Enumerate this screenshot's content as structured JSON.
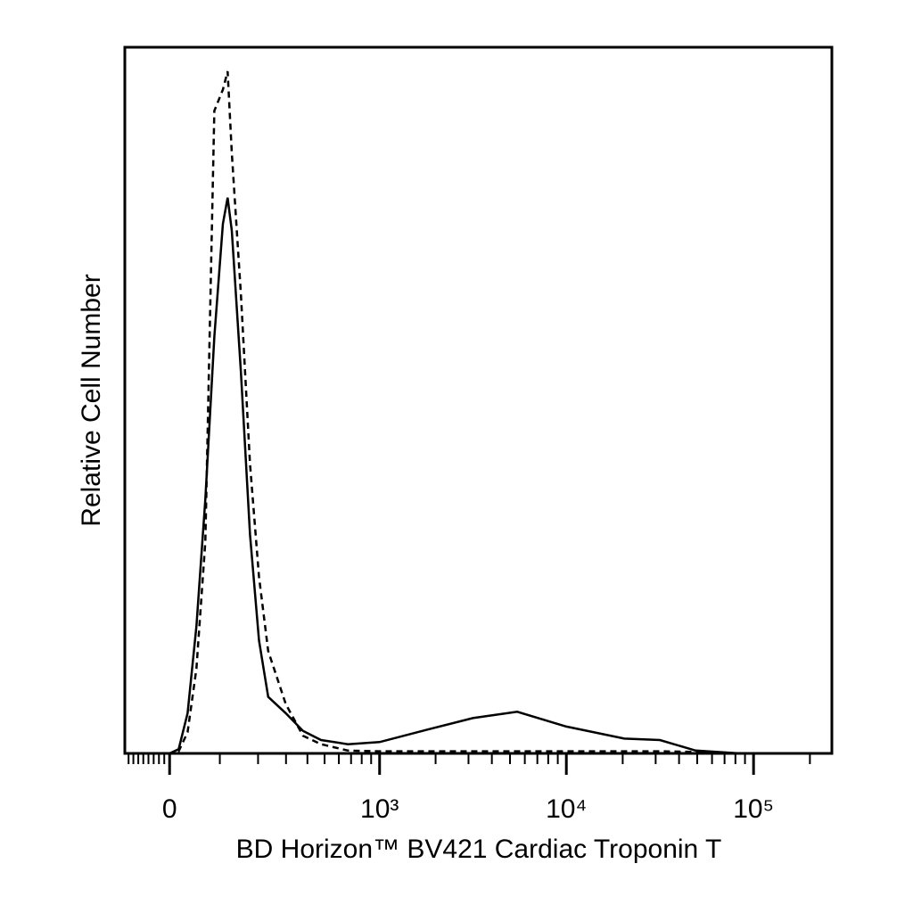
{
  "chart_data": {
    "type": "line",
    "xlabel": "BD Horizon™ BV421 Cardiac Troponin T",
    "ylabel": "Relative Cell Number",
    "xscale": "biexponential",
    "xlim": [
      -88,
      262000
    ],
    "ylim": [
      0,
      100
    ],
    "xticks": [
      {
        "value": 0,
        "label": "0"
      },
      {
        "value": 1000,
        "label": "10³"
      },
      {
        "value": 10000,
        "label": "10⁴"
      },
      {
        "value": 100000,
        "label": "10⁵"
      }
    ],
    "xminorticks": [
      -80,
      -70,
      -60,
      -50,
      -40,
      -30,
      -20,
      -10,
      100,
      200,
      300,
      400,
      500,
      600,
      700,
      800,
      900,
      2000,
      3000,
      4000,
      5000,
      6000,
      7000,
      8000,
      9000,
      20000,
      30000,
      40000,
      50000,
      60000,
      70000,
      80000,
      90000,
      200000
    ],
    "x": [
      -88,
      0,
      17,
      34,
      51,
      69,
      88,
      107,
      118,
      128,
      151,
      176,
      203,
      233,
      299,
      377,
      478,
      673,
      1000,
      1826,
      3162,
      5467,
      10000,
      20400,
      31600,
      49000,
      84800,
      262000
    ],
    "series": [
      {
        "color": "#000000",
        "dash": "solid",
        "values": [
          0,
          0,
          0.6,
          5.7,
          18,
          36,
          59,
          75,
          78.7,
          74,
          54,
          31,
          16,
          8,
          5.7,
          3.2,
          1.9,
          1.3,
          1.6,
          3.4,
          5,
          5.9,
          3.8,
          2.1,
          1.9,
          0.4,
          0,
          0
        ]
      },
      {
        "color": "#000000",
        "dash": "dashed",
        "values": [
          0,
          0,
          0.3,
          3,
          12,
          30,
          91,
          94,
          96.6,
          85,
          65,
          41,
          25,
          14.5,
          7,
          2.5,
          1.3,
          0.4,
          0.3,
          0.3,
          0.3,
          0.3,
          0.3,
          0.3,
          0.3,
          0.2,
          0,
          0
        ]
      }
    ]
  }
}
